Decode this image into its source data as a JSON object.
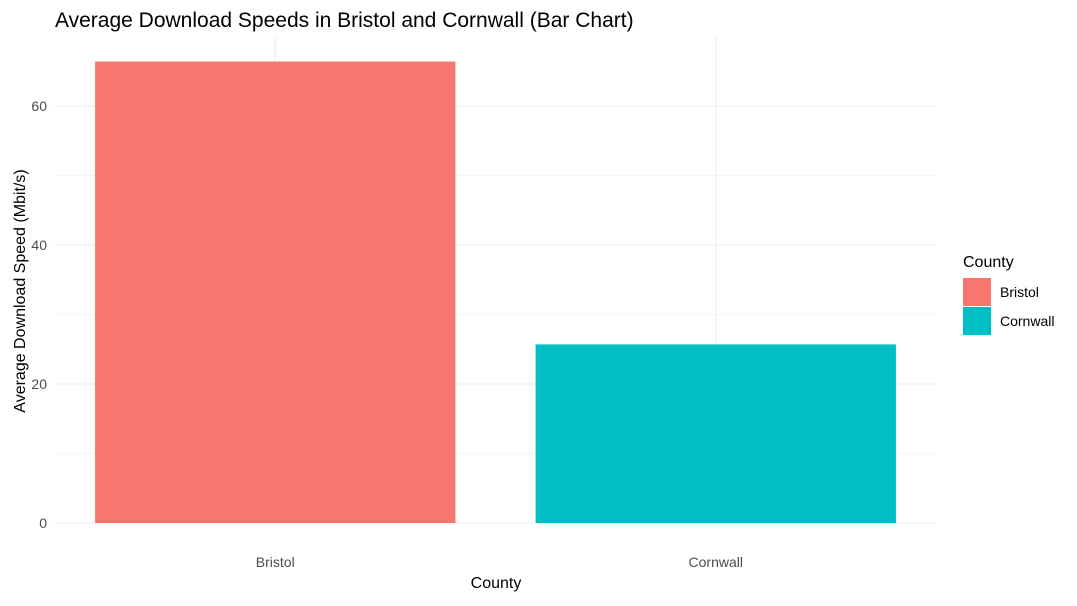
{
  "chart_data": {
    "type": "bar",
    "title": "Average Download Speeds in Bristol and Cornwall (Bar Chart)",
    "xlabel": "County",
    "ylabel": "Average Download Speed (Mbit/s)",
    "categories": [
      "Bristol",
      "Cornwall"
    ],
    "values": [
      66.4,
      25.7
    ],
    "colors": [
      "#F8766D",
      "#00BFC4"
    ],
    "ylim": [
      0,
      70
    ],
    "yticks": [
      0,
      20,
      40,
      60
    ],
    "yticks_minor": [
      10,
      30,
      50
    ],
    "grid": true,
    "legend": {
      "title": "County",
      "position": "right",
      "entries": [
        "Bristol",
        "Cornwall"
      ]
    }
  }
}
